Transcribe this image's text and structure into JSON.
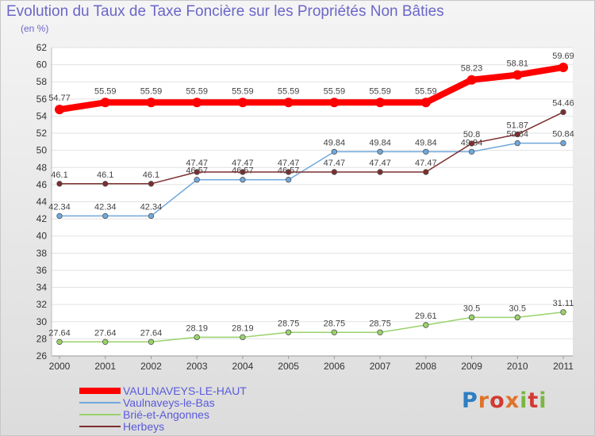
{
  "header": {
    "title": "Evolution du Taux de Taxe Foncière sur les Propriétés Non Bâties",
    "subtitle": "(en %)"
  },
  "logo_text": "Proxiti",
  "chart_data": {
    "type": "line",
    "title": "Evolution du Taux de Taxe Foncière sur les Propriétés Non Bâties",
    "ylabel": "(en %)",
    "xlabel": "",
    "x": [
      "2000",
      "2001",
      "2002",
      "2003",
      "2004",
      "2005",
      "2006",
      "2007",
      "2008",
      "2009",
      "2010",
      "2011"
    ],
    "ylim": [
      26,
      62
    ],
    "yticks": [
      26,
      28,
      30,
      32,
      34,
      36,
      38,
      40,
      42,
      44,
      46,
      48,
      50,
      52,
      54,
      56,
      58,
      60,
      62
    ],
    "grid": "horizontal",
    "legend_position": "bottom-left",
    "series": [
      {
        "name": "VAULNAVEYS-LE-HAUT",
        "color": "#ff0000",
        "values": [
          54.77,
          55.59,
          55.59,
          55.59,
          55.59,
          55.59,
          55.59,
          55.59,
          55.59,
          58.23,
          58.81,
          59.69
        ]
      },
      {
        "name": "Vaulnaveys-le-Bas",
        "color": "#6fa8dc",
        "values": [
          42.34,
          42.34,
          42.34,
          46.57,
          46.57,
          46.57,
          49.84,
          49.84,
          49.84,
          49.84,
          50.84,
          50.84
        ]
      },
      {
        "name": "Brié-et-Angonnes",
        "color": "#99d36b",
        "values": [
          27.64,
          27.64,
          27.64,
          28.19,
          28.19,
          28.75,
          28.75,
          28.75,
          29.61,
          30.5,
          30.5,
          31.11
        ]
      },
      {
        "name": "Herbeys",
        "color": "#7b2e2e",
        "values": [
          46.1,
          46.1,
          46.1,
          47.47,
          47.47,
          47.47,
          47.47,
          47.47,
          47.47,
          50.8,
          51.87,
          54.46
        ]
      }
    ]
  }
}
